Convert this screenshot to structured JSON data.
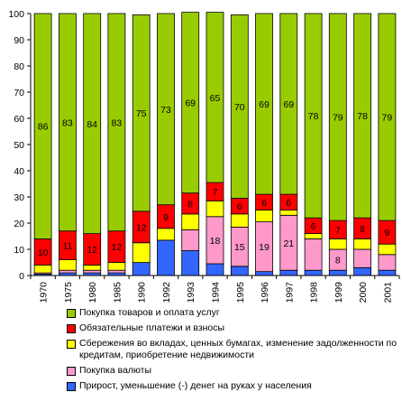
{
  "chart_data": {
    "type": "bar",
    "stacked": true,
    "categories": [
      "1970",
      "1975",
      "1980",
      "1985",
      "1990",
      "1992",
      "1993",
      "1994",
      "1995",
      "1996",
      "1997",
      "1998",
      "1999",
      "2000",
      "2001"
    ],
    "ylim": [
      0,
      100
    ],
    "yticks": [
      0,
      10,
      20,
      30,
      40,
      50,
      60,
      70,
      80,
      90,
      100
    ],
    "series": [
      {
        "name": "Прирост, уменьшение (-) денег на руках у населения",
        "color": "#3366ff",
        "values": [
          0.5,
          1,
          1,
          1,
          5,
          13.5,
          9.5,
          4.5,
          3.5,
          1.5,
          2,
          2,
          2,
          3,
          2
        ]
      },
      {
        "name": "Покупка валюты",
        "color": "#ff99cc",
        "values": [
          0.5,
          1,
          1,
          1,
          0,
          0,
          8,
          18,
          15,
          19,
          21,
          12,
          8,
          7,
          6
        ]
      },
      {
        "name": "Сбережения во вкладах, ценных бумагах, изменение задолженности по кредитам, приобретение недвижимости",
        "color": "#ffff00",
        "values": [
          3,
          4,
          2,
          3,
          7.5,
          4.5,
          6,
          6,
          5,
          4.5,
          2,
          2,
          4,
          4,
          4
        ]
      },
      {
        "name": "Обязательные платежи и взносы",
        "color": "#ff0000",
        "values": [
          10,
          11,
          12,
          12,
          12,
          9,
          8,
          7,
          6,
          6,
          6,
          6,
          7,
          8,
          9
        ]
      },
      {
        "name": "Покупка товаров и оплата услуг",
        "color": "#99cc00",
        "values": [
          86,
          83,
          84,
          83,
          75,
          73,
          69,
          65,
          70,
          69,
          69,
          78,
          79,
          78,
          79
        ]
      }
    ],
    "data_labels": {
      "Покупка товаров и оплата услуг": [
        "86",
        "83",
        "84",
        "83",
        "75",
        "73",
        "69",
        "65",
        "70",
        "69",
        "69",
        "78",
        "79",
        "78",
        "79"
      ],
      "Обязательные платежи и взносы": [
        "10",
        "11",
        "12",
        "12",
        "12",
        "9",
        "8",
        "7",
        "6",
        "6",
        "6",
        "6",
        "7",
        "8",
        "9"
      ],
      "Покупка валюты": [
        "",
        "",
        "",
        "",
        "",
        "",
        "",
        "18",
        "15",
        "19",
        "21",
        "",
        "8",
        "",
        ""
      ]
    },
    "legend_order": [
      "Покупка товаров и оплата услуг",
      "Обязательные платежи и взносы",
      "Сбережения во вкладах, ценных бумагах, изменение задолженности по кредитам, приобретение недвижимости",
      "Покупка валюты",
      "Прирост, уменьшение (-) денег на руках у населения"
    ],
    "legend_position": "bottom",
    "grid": false
  },
  "legend": {
    "items": [
      {
        "label": "Покупка товаров и оплата услуг",
        "color": "#99cc00"
      },
      {
        "label": "Обязательные платежи и взносы",
        "color": "#ff0000"
      },
      {
        "label": "Сбережения во вкладах, ценных бумагах, изменение задолженности по кредитам, приобретение недвижимости",
        "color": "#ffff00"
      },
      {
        "label": "Покупка валюты",
        "color": "#ff99cc"
      },
      {
        "label": "Прирост, уменьшение (-) денег на руках у населения",
        "color": "#3366ff"
      }
    ]
  }
}
